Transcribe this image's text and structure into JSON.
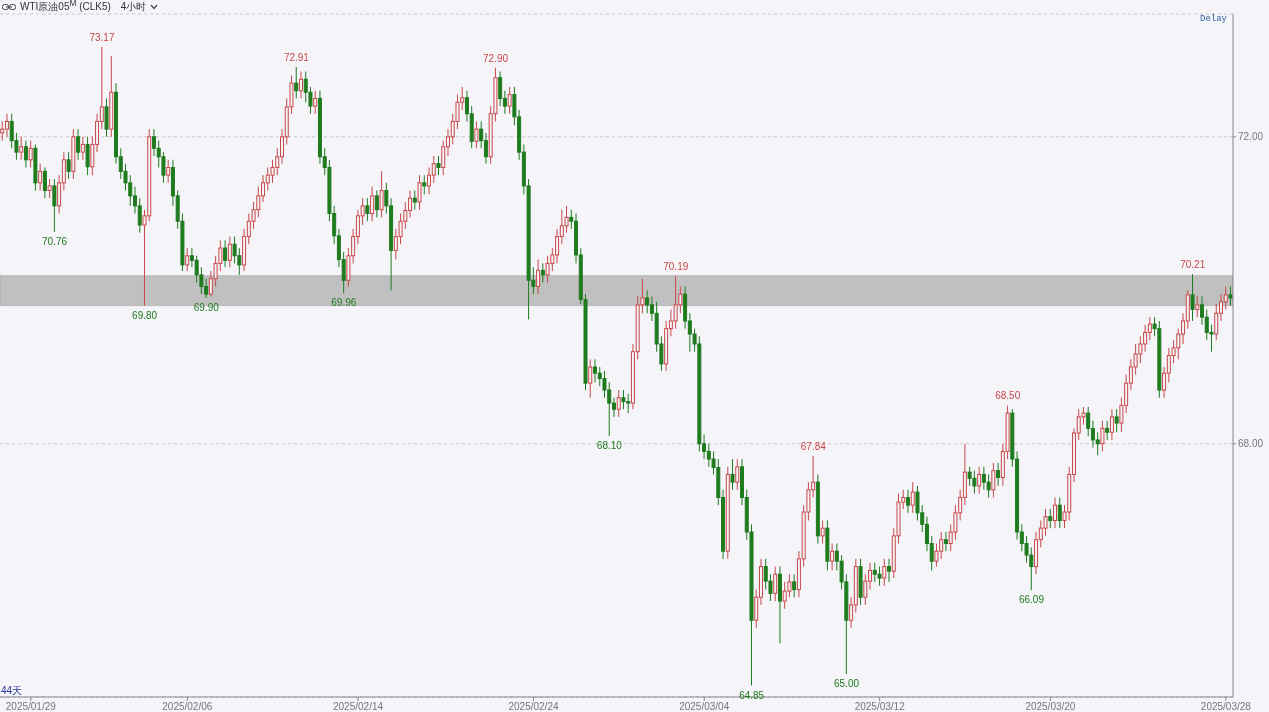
{
  "chart_data": {
    "type": "candlestick",
    "title": "WTI原油05$^{M}$ (CLK5)",
    "subtitle": "4小时",
    "categories": [
      null,
      null,
      null,
      null,
      null,
      null,
      "2025/01/29",
      null,
      null,
      null,
      null,
      null,
      null,
      null,
      null,
      null,
      null,
      null,
      null,
      null,
      null,
      null,
      null,
      null,
      null,
      null,
      null,
      null,
      null,
      null,
      null,
      null,
      null,
      null,
      null,
      null,
      null,
      null,
      null,
      "2025/02/06",
      null,
      null,
      null,
      null,
      null,
      null,
      null,
      null,
      null,
      null,
      null,
      null,
      null,
      null,
      null,
      null,
      null,
      null,
      null,
      null,
      null,
      null,
      null,
      null,
      null,
      null,
      null,
      null,
      null,
      null,
      null,
      null,
      null,
      null,
      null,
      "2025/02/14",
      null,
      null,
      null,
      null,
      null,
      null,
      null,
      null,
      null,
      null,
      null,
      null,
      null,
      null,
      null,
      null,
      null,
      null,
      null,
      null,
      null,
      null,
      null,
      null,
      null,
      null,
      null,
      null,
      null,
      null,
      null,
      null,
      null,
      null,
      null,
      null,
      "2025/02/24",
      null,
      null,
      null,
      null,
      null,
      null,
      null,
      null,
      null,
      null,
      null,
      null,
      null,
      null,
      null,
      null,
      null,
      null,
      null,
      null,
      null,
      null,
      null,
      null,
      null,
      null,
      null,
      null,
      null,
      null,
      null,
      null,
      null,
      null,
      null,
      "2025/03/04",
      null,
      null,
      null,
      null,
      null,
      null,
      null,
      null,
      null,
      null,
      null,
      null,
      null,
      null,
      null,
      null,
      null,
      null,
      null,
      null,
      null,
      null,
      null,
      null,
      null,
      null,
      null,
      null,
      null,
      null,
      null,
      null,
      null,
      null,
      null,
      null,
      "2025/03/12",
      null,
      null,
      null,
      null,
      null,
      null,
      null,
      null,
      null,
      null,
      null,
      null,
      null,
      null,
      null,
      null,
      null,
      null,
      null,
      null,
      null,
      null,
      null,
      null,
      null,
      null,
      null,
      null,
      null,
      null,
      null,
      null,
      null,
      null,
      null,
      "2025/03/20",
      null,
      null,
      null,
      null,
      null,
      null,
      null,
      null,
      null,
      null,
      null,
      null,
      null,
      null,
      null,
      null,
      null,
      null,
      null,
      null,
      null,
      null,
      null,
      null,
      null,
      null,
      null,
      null,
      null,
      null,
      null,
      null,
      null,
      null,
      null,
      null,
      "2025/03/28",
      null
    ],
    "ohlc": [
      [
        72.05,
        72.2,
        71.95,
        72.1
      ],
      [
        72.1,
        72.3,
        72.0,
        72.2
      ],
      [
        72.2,
        72.3,
        71.85,
        71.95
      ],
      [
        71.95,
        72.05,
        71.7,
        71.8
      ],
      [
        71.8,
        72.0,
        71.7,
        71.87
      ],
      [
        71.87,
        71.95,
        71.6,
        71.7
      ],
      [
        71.7,
        71.95,
        71.6,
        71.85
      ],
      [
        71.85,
        71.9,
        71.3,
        71.4
      ],
      [
        71.4,
        71.65,
        71.3,
        71.55
      ],
      [
        71.55,
        71.6,
        71.2,
        71.3
      ],
      [
        71.3,
        71.45,
        71.2,
        71.36
      ],
      [
        71.36,
        71.45,
        70.76,
        71.1
      ],
      [
        71.1,
        71.5,
        71.0,
        71.4
      ],
      [
        71.4,
        71.8,
        71.3,
        71.7
      ],
      [
        71.7,
        71.8,
        71.45,
        71.55
      ],
      [
        71.55,
        72.1,
        71.45,
        72.0
      ],
      [
        72.0,
        72.1,
        71.7,
        71.8
      ],
      [
        71.8,
        72.0,
        71.7,
        71.9
      ],
      [
        71.9,
        72.0,
        71.5,
        71.61
      ],
      [
        71.61,
        72.0,
        71.5,
        71.9
      ],
      [
        71.9,
        72.3,
        71.8,
        72.2
      ],
      [
        72.2,
        73.17,
        72.1,
        72.39
      ],
      [
        72.39,
        72.5,
        72.0,
        72.1
      ],
      [
        72.1,
        73.05,
        72.0,
        72.58
      ],
      [
        72.58,
        72.7,
        71.65,
        71.74
      ],
      [
        71.74,
        71.85,
        71.45,
        71.55
      ],
      [
        71.55,
        71.65,
        71.3,
        71.4
      ],
      [
        71.4,
        71.5,
        71.1,
        71.23
      ],
      [
        71.23,
        71.35,
        71.0,
        71.1
      ],
      [
        71.1,
        71.2,
        70.75,
        70.85
      ],
      [
        70.85,
        71.05,
        69.8,
        70.97
      ],
      [
        70.97,
        72.1,
        70.9,
        72.0
      ],
      [
        72.0,
        72.1,
        71.75,
        71.85
      ],
      [
        71.85,
        71.95,
        71.6,
        71.74
      ],
      [
        71.74,
        71.8,
        71.4,
        71.5
      ],
      [
        71.5,
        71.7,
        71.4,
        71.6
      ],
      [
        71.6,
        71.7,
        71.1,
        71.23
      ],
      [
        71.23,
        71.3,
        70.8,
        70.9
      ],
      [
        70.9,
        71.0,
        70.25,
        70.33
      ],
      [
        70.33,
        70.55,
        70.25,
        70.45
      ],
      [
        70.45,
        70.55,
        70.3,
        70.39
      ],
      [
        70.39,
        70.45,
        70.1,
        70.2
      ],
      [
        70.2,
        70.3,
        69.95,
        70.05
      ],
      [
        70.05,
        70.15,
        69.9,
        69.95
      ],
      [
        69.95,
        70.25,
        69.92,
        70.15
      ],
      [
        70.15,
        70.45,
        70.05,
        70.35
      ],
      [
        70.35,
        70.65,
        70.25,
        70.55
      ],
      [
        70.55,
        70.65,
        70.3,
        70.39
      ],
      [
        70.39,
        70.7,
        70.3,
        70.6
      ],
      [
        70.6,
        70.7,
        70.35,
        70.45
      ],
      [
        70.45,
        70.55,
        70.2,
        70.33
      ],
      [
        70.33,
        70.8,
        70.25,
        70.7
      ],
      [
        70.7,
        71.0,
        70.6,
        70.9
      ],
      [
        70.9,
        71.15,
        70.8,
        71.05
      ],
      [
        71.05,
        71.35,
        70.95,
        71.23
      ],
      [
        71.23,
        71.5,
        71.15,
        71.4
      ],
      [
        71.4,
        71.6,
        71.3,
        71.5
      ],
      [
        71.5,
        71.7,
        71.4,
        71.6
      ],
      [
        71.6,
        71.85,
        71.5,
        71.74
      ],
      [
        71.74,
        72.1,
        71.65,
        72.0
      ],
      [
        72.0,
        72.5,
        71.9,
        72.39
      ],
      [
        72.39,
        72.8,
        72.3,
        72.7
      ],
      [
        72.7,
        72.91,
        72.5,
        72.6
      ],
      [
        72.6,
        72.85,
        72.5,
        72.75
      ],
      [
        72.75,
        72.85,
        72.45,
        72.58
      ],
      [
        72.58,
        72.65,
        72.3,
        72.4
      ],
      [
        72.4,
        72.6,
        72.3,
        72.5
      ],
      [
        72.5,
        72.6,
        71.65,
        71.74
      ],
      [
        71.74,
        71.85,
        71.5,
        71.6
      ],
      [
        71.6,
        71.7,
        70.9,
        71.0
      ],
      [
        71.0,
        71.1,
        70.6,
        70.71
      ],
      [
        70.71,
        70.8,
        70.3,
        70.4
      ],
      [
        70.4,
        70.5,
        69.96,
        70.13
      ],
      [
        70.13,
        70.55,
        70.05,
        70.45
      ],
      [
        70.45,
        70.8,
        70.35,
        70.7
      ],
      [
        70.7,
        71.05,
        70.6,
        70.97
      ],
      [
        70.97,
        71.2,
        70.85,
        71.1
      ],
      [
        71.1,
        71.2,
        70.9,
        71.0
      ],
      [
        71.0,
        71.35,
        70.9,
        71.23
      ],
      [
        71.23,
        71.3,
        70.95,
        71.05
      ],
      [
        71.05,
        71.55,
        70.95,
        71.3
      ],
      [
        71.3,
        71.4,
        71.0,
        71.1
      ],
      [
        71.1,
        71.2,
        70.0,
        70.52
      ],
      [
        70.52,
        70.8,
        70.4,
        70.7
      ],
      [
        70.7,
        71.0,
        70.6,
        70.9
      ],
      [
        70.9,
        71.15,
        70.8,
        71.04
      ],
      [
        71.04,
        71.3,
        70.95,
        71.2
      ],
      [
        71.2,
        71.3,
        71.05,
        71.15
      ],
      [
        71.15,
        71.5,
        71.05,
        71.4
      ],
      [
        71.4,
        71.5,
        71.25,
        71.36
      ],
      [
        71.36,
        71.6,
        71.25,
        71.5
      ],
      [
        71.5,
        71.75,
        71.4,
        71.65
      ],
      [
        71.65,
        71.75,
        71.5,
        71.6
      ],
      [
        71.6,
        71.95,
        71.5,
        71.87
      ],
      [
        71.87,
        72.1,
        71.75,
        72.0
      ],
      [
        72.0,
        72.3,
        71.9,
        72.2
      ],
      [
        72.2,
        72.55,
        72.1,
        72.45
      ],
      [
        72.45,
        72.65,
        72.35,
        72.51
      ],
      [
        72.51,
        72.6,
        72.2,
        72.3
      ],
      [
        72.3,
        72.4,
        71.85,
        71.94
      ],
      [
        71.94,
        72.2,
        71.85,
        72.1
      ],
      [
        72.1,
        72.2,
        71.85,
        71.95
      ],
      [
        71.95,
        72.05,
        71.65,
        71.74
      ],
      [
        71.74,
        72.4,
        71.65,
        72.3
      ],
      [
        72.3,
        72.9,
        72.2,
        72.77
      ],
      [
        72.77,
        72.85,
        72.4,
        72.5
      ],
      [
        72.5,
        72.6,
        72.3,
        72.4
      ],
      [
        72.4,
        72.65,
        72.3,
        72.55
      ],
      [
        72.55,
        72.65,
        72.15,
        72.26
      ],
      [
        72.26,
        72.35,
        71.7,
        71.8
      ],
      [
        71.8,
        71.9,
        71.25,
        71.36
      ],
      [
        71.36,
        71.45,
        69.62,
        70.13
      ],
      [
        70.13,
        70.3,
        69.95,
        70.05
      ],
      [
        70.05,
        70.4,
        69.95,
        70.26
      ],
      [
        70.26,
        70.35,
        70.1,
        70.2
      ],
      [
        70.2,
        70.45,
        70.1,
        70.35
      ],
      [
        70.35,
        70.55,
        70.25,
        70.46
      ],
      [
        70.46,
        70.8,
        70.35,
        70.7
      ],
      [
        70.7,
        71.05,
        70.6,
        70.84
      ],
      [
        70.84,
        71.1,
        70.75,
        70.95
      ],
      [
        70.95,
        71.05,
        70.8,
        70.9
      ],
      [
        70.9,
        71.0,
        70.35,
        70.46
      ],
      [
        70.46,
        70.55,
        69.82,
        69.88
      ],
      [
        69.88,
        69.95,
        68.7,
        68.79
      ],
      [
        68.79,
        69.1,
        68.6,
        69.0
      ],
      [
        69.0,
        69.1,
        68.8,
        68.92
      ],
      [
        68.92,
        69.0,
        68.75,
        68.85
      ],
      [
        68.85,
        68.95,
        68.6,
        68.7
      ],
      [
        68.7,
        68.8,
        68.1,
        68.53
      ],
      [
        68.53,
        68.6,
        68.35,
        68.45
      ],
      [
        68.45,
        68.7,
        68.35,
        68.6
      ],
      [
        68.6,
        68.7,
        68.45,
        68.55
      ],
      [
        68.55,
        68.65,
        68.4,
        68.53
      ],
      [
        68.53,
        69.3,
        68.45,
        69.2
      ],
      [
        69.2,
        69.92,
        69.1,
        69.81
      ],
      [
        69.81,
        70.15,
        69.7,
        69.9
      ],
      [
        69.9,
        70.0,
        69.7,
        69.81
      ],
      [
        69.81,
        69.92,
        69.6,
        69.7
      ],
      [
        69.7,
        69.85,
        69.2,
        69.3
      ],
      [
        69.3,
        69.4,
        68.95,
        69.04
      ],
      [
        69.04,
        69.6,
        68.95,
        69.5
      ],
      [
        69.5,
        69.75,
        69.4,
        69.6
      ],
      [
        69.6,
        70.19,
        69.5,
        69.81
      ],
      [
        69.81,
        70.05,
        69.7,
        69.95
      ],
      [
        69.95,
        70.05,
        69.5,
        69.6
      ],
      [
        69.6,
        69.7,
        69.2,
        69.43
      ],
      [
        69.43,
        69.5,
        69.2,
        69.3
      ],
      [
        69.3,
        69.4,
        67.9,
        68.0
      ],
      [
        68.0,
        68.12,
        67.8,
        67.9
      ],
      [
        67.9,
        68.0,
        67.7,
        67.8
      ],
      [
        67.8,
        67.9,
        67.6,
        67.69
      ],
      [
        67.69,
        67.8,
        67.2,
        67.3
      ],
      [
        67.3,
        67.4,
        66.5,
        66.6
      ],
      [
        66.6,
        67.7,
        66.5,
        67.6
      ],
      [
        67.6,
        67.8,
        67.4,
        67.5
      ],
      [
        67.5,
        67.8,
        67.4,
        67.7
      ],
      [
        67.7,
        67.8,
        67.2,
        67.3
      ],
      [
        67.3,
        67.4,
        66.75,
        66.85
      ],
      [
        66.85,
        66.95,
        64.85,
        65.7
      ],
      [
        65.7,
        66.1,
        65.6,
        66.0
      ],
      [
        66.0,
        66.5,
        65.9,
        66.4
      ],
      [
        66.4,
        66.5,
        66.1,
        66.21
      ],
      [
        66.21,
        66.3,
        65.95,
        66.05
      ],
      [
        66.05,
        66.4,
        65.95,
        66.3
      ],
      [
        66.3,
        66.4,
        65.4,
        65.95
      ],
      [
        65.95,
        66.2,
        65.85,
        66.08
      ],
      [
        66.08,
        66.3,
        66.0,
        66.2
      ],
      [
        66.2,
        66.3,
        66.0,
        66.1
      ],
      [
        66.1,
        66.6,
        66.0,
        66.5
      ],
      [
        66.5,
        67.2,
        66.4,
        67.11
      ],
      [
        67.11,
        67.5,
        67.0,
        67.4
      ],
      [
        67.4,
        67.84,
        67.3,
        67.5
      ],
      [
        67.5,
        67.6,
        66.7,
        66.8
      ],
      [
        66.8,
        67.0,
        66.7,
        66.9
      ],
      [
        66.9,
        67.0,
        66.35,
        66.47
      ],
      [
        66.47,
        66.7,
        66.35,
        66.6
      ],
      [
        66.6,
        66.7,
        66.35,
        66.47
      ],
      [
        66.47,
        66.55,
        66.1,
        66.2
      ],
      [
        66.2,
        66.3,
        65.0,
        65.7
      ],
      [
        65.7,
        66.0,
        65.6,
        65.9
      ],
      [
        65.9,
        66.5,
        65.8,
        66.4
      ],
      [
        66.4,
        66.5,
        65.9,
        66.0
      ],
      [
        66.0,
        66.3,
        65.9,
        66.21
      ],
      [
        66.21,
        66.45,
        66.1,
        66.35
      ],
      [
        66.35,
        66.45,
        66.2,
        66.3
      ],
      [
        66.3,
        66.4,
        66.15,
        66.25
      ],
      [
        66.25,
        66.5,
        66.15,
        66.4
      ],
      [
        66.4,
        66.5,
        66.2,
        66.34
      ],
      [
        66.34,
        66.9,
        66.25,
        66.8
      ],
      [
        66.8,
        67.35,
        66.7,
        67.24
      ],
      [
        67.24,
        67.4,
        67.15,
        67.3
      ],
      [
        67.3,
        67.4,
        67.1,
        67.2
      ],
      [
        67.2,
        67.5,
        67.1,
        67.37
      ],
      [
        67.37,
        67.45,
        67.0,
        67.1
      ],
      [
        67.1,
        67.2,
        66.85,
        66.95
      ],
      [
        66.95,
        67.05,
        66.6,
        66.7
      ],
      [
        66.7,
        66.8,
        66.35,
        66.47
      ],
      [
        66.47,
        66.7,
        66.4,
        66.6
      ],
      [
        66.6,
        66.85,
        66.5,
        66.75
      ],
      [
        66.75,
        66.85,
        66.6,
        66.7
      ],
      [
        66.7,
        66.95,
        66.6,
        66.85
      ],
      [
        66.85,
        67.2,
        66.75,
        67.1
      ],
      [
        67.1,
        67.4,
        67.0,
        67.3
      ],
      [
        67.3,
        68.0,
        67.2,
        67.63
      ],
      [
        67.63,
        67.7,
        67.45,
        67.55
      ],
      [
        67.55,
        67.65,
        67.35,
        67.45
      ],
      [
        67.45,
        67.7,
        67.35,
        67.6
      ],
      [
        67.6,
        67.7,
        67.4,
        67.5
      ],
      [
        67.5,
        67.6,
        67.3,
        67.4
      ],
      [
        67.4,
        67.75,
        67.3,
        67.65
      ],
      [
        67.65,
        67.75,
        67.45,
        67.56
      ],
      [
        67.56,
        68.0,
        67.45,
        67.9
      ],
      [
        67.9,
        68.5,
        67.8,
        68.4
      ],
      [
        68.4,
        68.45,
        67.7,
        67.8
      ],
      [
        67.8,
        67.9,
        66.75,
        66.85
      ],
      [
        66.85,
        66.95,
        66.6,
        66.7
      ],
      [
        66.7,
        66.8,
        66.45,
        66.55
      ],
      [
        66.55,
        66.65,
        66.09,
        66.4
      ],
      [
        66.4,
        66.85,
        66.3,
        66.75
      ],
      [
        66.75,
        67.0,
        66.65,
        66.9
      ],
      [
        66.9,
        67.15,
        66.8,
        67.05
      ],
      [
        67.05,
        67.15,
        66.9,
        67.0
      ],
      [
        67.0,
        67.3,
        66.9,
        67.2
      ],
      [
        67.2,
        67.3,
        66.9,
        67.0
      ],
      [
        67.0,
        67.2,
        66.9,
        67.11
      ],
      [
        67.11,
        67.7,
        67.0,
        67.6
      ],
      [
        67.6,
        68.2,
        67.5,
        68.14
      ],
      [
        68.14,
        68.45,
        68.05,
        68.35
      ],
      [
        68.35,
        68.48,
        68.25,
        68.4
      ],
      [
        68.4,
        68.48,
        68.1,
        68.2
      ],
      [
        68.2,
        68.3,
        67.95,
        68.05
      ],
      [
        68.05,
        68.15,
        67.85,
        68.0
      ],
      [
        68.0,
        68.3,
        67.9,
        68.2
      ],
      [
        68.2,
        68.3,
        68.05,
        68.15
      ],
      [
        68.15,
        68.45,
        68.05,
        68.35
      ],
      [
        68.35,
        68.45,
        68.15,
        68.27
      ],
      [
        68.27,
        68.6,
        68.15,
        68.5
      ],
      [
        68.5,
        68.9,
        68.4,
        68.79
      ],
      [
        68.79,
        69.1,
        68.7,
        69.0
      ],
      [
        69.0,
        69.3,
        68.9,
        69.17
      ],
      [
        69.17,
        69.4,
        69.05,
        69.3
      ],
      [
        69.3,
        69.55,
        69.2,
        69.45
      ],
      [
        69.45,
        69.65,
        69.35,
        69.56
      ],
      [
        69.56,
        69.65,
        69.4,
        69.5
      ],
      [
        69.5,
        69.6,
        68.6,
        68.7
      ],
      [
        68.7,
        69.0,
        68.6,
        68.92
      ],
      [
        68.92,
        69.25,
        68.8,
        69.15
      ],
      [
        69.15,
        69.35,
        69.05,
        69.25
      ],
      [
        69.25,
        69.5,
        69.1,
        69.43
      ],
      [
        69.43,
        69.7,
        69.3,
        69.6
      ],
      [
        69.6,
        70.0,
        69.5,
        69.94
      ],
      [
        69.94,
        70.21,
        69.6,
        69.75
      ],
      [
        69.75,
        69.92,
        69.65,
        69.81
      ],
      [
        69.81,
        69.92,
        69.55,
        69.65
      ],
      [
        69.65,
        69.75,
        69.35,
        69.45
      ],
      [
        69.45,
        69.55,
        69.2,
        69.43
      ],
      [
        69.43,
        69.82,
        69.35,
        69.7
      ],
      [
        69.7,
        69.95,
        69.6,
        69.85
      ],
      [
        69.85,
        70.05,
        69.75,
        69.94
      ],
      [
        69.94,
        70.05,
        69.8,
        69.9
      ]
    ],
    "ylim": [
      64.7,
      73.6
    ],
    "yticks": [
      {
        "value": 72,
        "label": "72.00"
      },
      {
        "value": 68,
        "label": "68.00"
      }
    ],
    "grid": "y",
    "bands": [
      {
        "axis": "y",
        "from": 69.8,
        "to": 70.19,
        "color": "#c0c0c0"
      }
    ],
    "annotations": [
      {
        "text": "73.17",
        "y": 73.17
      },
      {
        "text": "72.91",
        "y": 72.91
      },
      {
        "text": "72.90",
        "y": 72.9
      },
      {
        "text": "70.19",
        "y": 70.19
      },
      {
        "text": "67.84",
        "y": 67.84
      },
      {
        "text": "68.50",
        "y": 68.5
      },
      {
        "text": "70.21",
        "y": 70.21
      },
      {
        "text": "70.76",
        "y": 70.76
      },
      {
        "text": "69.80",
        "y": 69.8
      },
      {
        "text": "69.90",
        "y": 69.9
      },
      {
        "text": "69.96",
        "y": 69.96
      },
      {
        "text": "68.10",
        "y": 68.1
      },
      {
        "text": "64.85",
        "y": 64.85
      },
      {
        "text": "65.00",
        "y": 65.0
      },
      {
        "text": "66.09",
        "y": 66.09
      },
      "Delay",
      "44天"
    ]
  }
}
